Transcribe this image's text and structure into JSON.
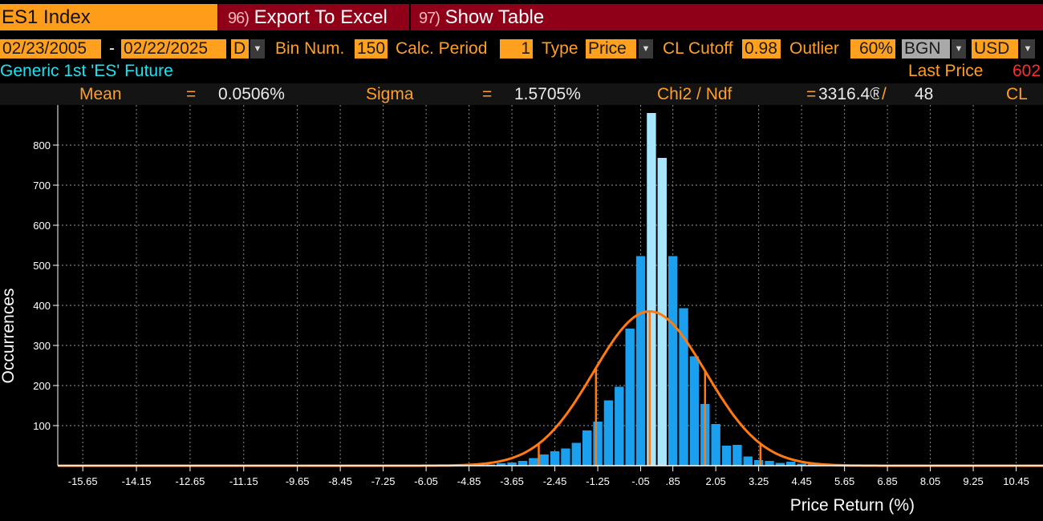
{
  "function_bar": {
    "ticker": "ES1 Index",
    "export": {
      "num": "96)",
      "label": "Export To Excel"
    },
    "show_table": {
      "num": "97)",
      "label": "Show Table"
    }
  },
  "params": {
    "start_date": "02/23/2005",
    "date_sep": "-",
    "end_date": "02/22/2025",
    "periodicity": "D",
    "bin_num_label": "Bin Num.",
    "bin_num": "150",
    "calc_period_label": "Calc. Period",
    "calc_period": "1",
    "type_label": "Type",
    "type": "Price",
    "cl_cutoff_label": "CL Cutoff",
    "cl_cutoff": "0.98",
    "outlier_label": "Outlier",
    "outlier": "60%",
    "source": "BGN",
    "currency": "USD"
  },
  "security": {
    "name": "Generic 1st 'ES' Future",
    "last_price_label": "Last Price",
    "last_price": "602"
  },
  "stats": {
    "mean_label": "Mean",
    "mean_eq": "=",
    "mean": "0.0506%",
    "sigma_label": "Sigma",
    "sigma_eq": "=",
    "sigma": "1.5705%",
    "chi_label": "Chi2 / Ndf",
    "chi_eq": "=",
    "chi": "3316.4®",
    "chi_sep": "/",
    "ndf": "48",
    "cl_label": "CL"
  },
  "colors": {
    "bar": "#1aa0ee",
    "bar_highlight": "#a8e6ff",
    "fit": "#ff7a10",
    "orange_text": "#ff9f26",
    "accent_red": "#8f0018"
  },
  "chart_data": {
    "type": "bar",
    "xlabel": "Price Return (%)",
    "ylabel": "Occurrences",
    "xlim": [
      -16.35,
      11.2
    ],
    "ylim": [
      0,
      880
    ],
    "grid": true,
    "bin_width": 0.3,
    "x_ticks": [
      -15.65,
      -14.15,
      -12.65,
      -11.15,
      -9.65,
      -8.45,
      -7.25,
      -6.05,
      -4.85,
      -3.65,
      -2.45,
      -1.25,
      -0.05,
      0.85,
      2.05,
      3.25,
      4.45,
      5.65,
      6.85,
      8.05,
      9.25,
      10.45
    ],
    "x_tick_labels": [
      "-15.65",
      "-14.15",
      "-12.65",
      "-11.15",
      "-9.65",
      "-8.45",
      "-7.25",
      "-6.05",
      "-4.85",
      "-3.65",
      "-2.45",
      "-1.25",
      "-.05",
      ".85",
      "2.05",
      "3.25",
      "4.45",
      "5.65",
      "6.85",
      "8.05",
      "9.25",
      "10.45"
    ],
    "y_ticks": [
      100,
      200,
      300,
      400,
      500,
      600,
      700,
      800
    ],
    "bins": [
      {
        "x": -4.85,
        "y": 1
      },
      {
        "x": -4.55,
        "y": 2
      },
      {
        "x": -4.25,
        "y": 3
      },
      {
        "x": -3.95,
        "y": 6
      },
      {
        "x": -3.65,
        "y": 8
      },
      {
        "x": -3.35,
        "y": 12
      },
      {
        "x": -3.05,
        "y": 19
      },
      {
        "x": -2.75,
        "y": 28
      },
      {
        "x": -2.45,
        "y": 36
      },
      {
        "x": -2.15,
        "y": 43
      },
      {
        "x": -1.85,
        "y": 57
      },
      {
        "x": -1.55,
        "y": 88
      },
      {
        "x": -1.25,
        "y": 110
      },
      {
        "x": -0.95,
        "y": 163
      },
      {
        "x": -0.65,
        "y": 197
      },
      {
        "x": -0.35,
        "y": 342
      },
      {
        "x": -0.05,
        "y": 523
      },
      {
        "x": 0.25,
        "y": 880
      },
      {
        "x": 0.55,
        "y": 768
      },
      {
        "x": 0.85,
        "y": 523
      },
      {
        "x": 1.15,
        "y": 393
      },
      {
        "x": 1.45,
        "y": 273
      },
      {
        "x": 1.75,
        "y": 154
      },
      {
        "x": 2.05,
        "y": 104
      },
      {
        "x": 2.35,
        "y": 50
      },
      {
        "x": 2.65,
        "y": 52
      },
      {
        "x": 2.95,
        "y": 23
      },
      {
        "x": 3.25,
        "y": 14
      },
      {
        "x": 3.55,
        "y": 12
      },
      {
        "x": 3.85,
        "y": 7
      },
      {
        "x": 4.15,
        "y": 10
      },
      {
        "x": 4.45,
        "y": 5
      },
      {
        "x": 4.75,
        "y": 4
      },
      {
        "x": 5.05,
        "y": 3
      },
      {
        "x": 5.35,
        "y": 2
      },
      {
        "x": 5.65,
        "y": 1
      }
    ],
    "highlight_bins_x": [
      0.25,
      0.55
    ],
    "fit_curve": {
      "type": "normal",
      "peak": 385,
      "center": 0.2,
      "sigma": 1.57
    },
    "sigma_lines_x": [
      -4.45,
      -2.9,
      -1.3,
      0.2,
      1.75,
      3.3
    ]
  }
}
